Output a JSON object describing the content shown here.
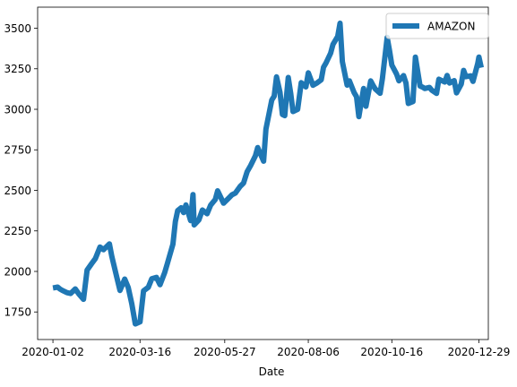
{
  "chart_data": {
    "type": "line",
    "xlabel": "Date",
    "ylabel": "",
    "xlim": [
      "2019-12-20",
      "2021-01-06"
    ],
    "ylim": [
      1580,
      3630
    ],
    "x_ticks": [
      "2020-01-02",
      "2020-03-16",
      "2020-05-27",
      "2020-08-06",
      "2020-10-16",
      "2020-12-29"
    ],
    "y_ticks": [
      1750,
      2000,
      2250,
      2500,
      2750,
      3000,
      3250,
      3500
    ],
    "grid": false,
    "legend_position": "top-right",
    "series": [
      {
        "name": "AMAZON",
        "color": "#1f77b4",
        "points": [
          [
            "2020-01-02",
            1898
          ],
          [
            "2020-01-06",
            1903
          ],
          [
            "2020-01-08",
            1891
          ],
          [
            "2020-01-10",
            1883
          ],
          [
            "2020-01-14",
            1869
          ],
          [
            "2020-01-17",
            1864
          ],
          [
            "2020-01-21",
            1892
          ],
          [
            "2020-01-24",
            1861
          ],
          [
            "2020-01-28",
            1828
          ],
          [
            "2020-01-31",
            2008
          ],
          [
            "2020-02-04",
            2049
          ],
          [
            "2020-02-07",
            2079
          ],
          [
            "2020-02-11",
            2150
          ],
          [
            "2020-02-14",
            2134
          ],
          [
            "2020-02-19",
            2170
          ],
          [
            "2020-02-21",
            2095
          ],
          [
            "2020-02-25",
            1972
          ],
          [
            "2020-02-28",
            1883
          ],
          [
            "2020-03-03",
            1953
          ],
          [
            "2020-03-06",
            1901
          ],
          [
            "2020-03-09",
            1800
          ],
          [
            "2020-03-12",
            1676
          ],
          [
            "2020-03-16",
            1689
          ],
          [
            "2020-03-19",
            1880
          ],
          [
            "2020-03-23",
            1902
          ],
          [
            "2020-03-26",
            1955
          ],
          [
            "2020-03-30",
            1963
          ],
          [
            "2020-04-02",
            1918
          ],
          [
            "2020-04-06",
            1993
          ],
          [
            "2020-04-08",
            2043
          ],
          [
            "2020-04-13",
            2168
          ],
          [
            "2020-04-15",
            2307
          ],
          [
            "2020-04-17",
            2375
          ],
          [
            "2020-04-20",
            2393
          ],
          [
            "2020-04-22",
            2363
          ],
          [
            "2020-04-24",
            2410
          ],
          [
            "2020-04-28",
            2314
          ],
          [
            "2020-04-30",
            2474
          ],
          [
            "2020-05-01",
            2287
          ],
          [
            "2020-05-05",
            2317
          ],
          [
            "2020-05-08",
            2379
          ],
          [
            "2020-05-12",
            2356
          ],
          [
            "2020-05-15",
            2409
          ],
          [
            "2020-05-19",
            2444
          ],
          [
            "2020-05-21",
            2497
          ],
          [
            "2020-05-26",
            2421
          ],
          [
            "2020-05-29",
            2442
          ],
          [
            "2020-06-02",
            2472
          ],
          [
            "2020-06-05",
            2483
          ],
          [
            "2020-06-09",
            2524
          ],
          [
            "2020-06-12",
            2545
          ],
          [
            "2020-06-15",
            2615
          ],
          [
            "2020-06-18",
            2653
          ],
          [
            "2020-06-22",
            2713
          ],
          [
            "2020-06-24",
            2764
          ],
          [
            "2020-06-29",
            2680
          ],
          [
            "2020-07-01",
            2878
          ],
          [
            "2020-07-06",
            3057
          ],
          [
            "2020-07-08",
            3081
          ],
          [
            "2020-07-10",
            3200
          ],
          [
            "2020-07-13",
            3104
          ],
          [
            "2020-07-15",
            2968
          ],
          [
            "2020-07-17",
            2961
          ],
          [
            "2020-07-20",
            3196
          ],
          [
            "2020-07-22",
            3100
          ],
          [
            "2020-07-24",
            2986
          ],
          [
            "2020-07-28",
            3000
          ],
          [
            "2020-07-31",
            3164
          ],
          [
            "2020-08-04",
            3138
          ],
          [
            "2020-08-06",
            3225
          ],
          [
            "2020-08-10",
            3148
          ],
          [
            "2020-08-13",
            3161
          ],
          [
            "2020-08-17",
            3182
          ],
          [
            "2020-08-19",
            3260
          ],
          [
            "2020-08-21",
            3285
          ],
          [
            "2020-08-25",
            3346
          ],
          [
            "2020-08-27",
            3400
          ],
          [
            "2020-08-31",
            3450
          ],
          [
            "2020-09-02",
            3531
          ],
          [
            "2020-09-04",
            3294
          ],
          [
            "2020-09-08",
            3149
          ],
          [
            "2020-09-10",
            3175
          ],
          [
            "2020-09-14",
            3102
          ],
          [
            "2020-09-16",
            3078
          ],
          [
            "2020-09-18",
            2955
          ],
          [
            "2020-09-22",
            3128
          ],
          [
            "2020-09-24",
            3019
          ],
          [
            "2020-09-28",
            3175
          ],
          [
            "2020-09-30",
            3148
          ],
          [
            "2020-10-02",
            3125
          ],
          [
            "2020-10-06",
            3099
          ],
          [
            "2020-10-08",
            3190
          ],
          [
            "2020-10-12",
            3443
          ],
          [
            "2020-10-14",
            3363
          ],
          [
            "2020-10-16",
            3273
          ],
          [
            "2020-10-20",
            3217
          ],
          [
            "2020-10-22",
            3176
          ],
          [
            "2020-10-26",
            3208
          ],
          [
            "2020-10-28",
            3162
          ],
          [
            "2020-10-30",
            3036
          ],
          [
            "2020-11-03",
            3048
          ],
          [
            "2020-11-05",
            3322
          ],
          [
            "2020-11-09",
            3144
          ],
          [
            "2020-11-11",
            3137
          ],
          [
            "2020-11-13",
            3128
          ],
          [
            "2020-11-17",
            3135
          ],
          [
            "2020-11-19",
            3117
          ],
          [
            "2020-11-23",
            3098
          ],
          [
            "2020-11-25",
            3186
          ],
          [
            "2020-11-30",
            3168
          ],
          [
            "2020-12-02",
            3209
          ],
          [
            "2020-12-04",
            3162
          ],
          [
            "2020-12-08",
            3177
          ],
          [
            "2020-12-10",
            3101
          ],
          [
            "2020-12-14",
            3156
          ],
          [
            "2020-12-16",
            3240
          ],
          [
            "2020-12-18",
            3201
          ],
          [
            "2020-12-22",
            3206
          ],
          [
            "2020-12-24",
            3172
          ],
          [
            "2020-12-28",
            3283
          ],
          [
            "2020-12-29",
            3322
          ],
          [
            "2020-12-31",
            3257
          ]
        ]
      }
    ]
  }
}
